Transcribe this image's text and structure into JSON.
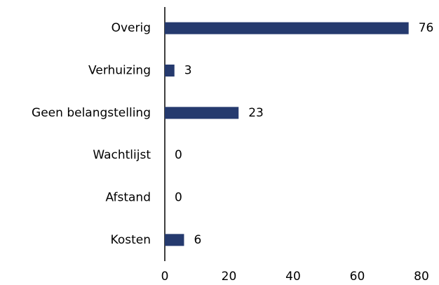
{
  "chart_data": {
    "type": "hbar",
    "categories": [
      "Overig",
      "Verhuizing",
      "Geen belangstelling",
      "Wachtlijst",
      "Afstand",
      "Kosten"
    ],
    "values": [
      76,
      3,
      23,
      0,
      0,
      6
    ],
    "color": "#253a6e",
    "xlim": [
      0,
      80
    ],
    "xticks": [
      0,
      20,
      40,
      60,
      80
    ],
    "grid": false
  }
}
